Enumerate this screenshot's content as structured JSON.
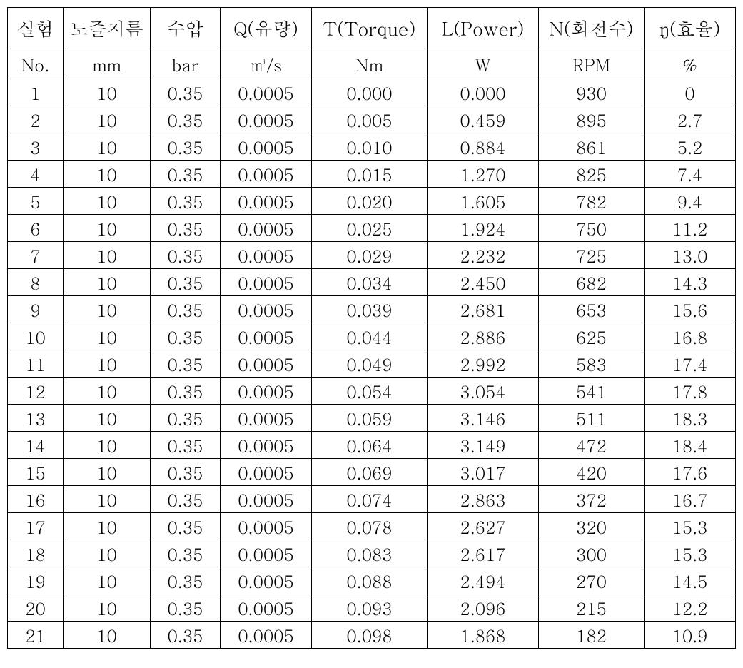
{
  "table": {
    "columns": [
      {
        "header": "실험",
        "unit": "No.",
        "width_class": "col-no"
      },
      {
        "header": "노즐지름",
        "unit": "mm",
        "width_class": "col-nozzle"
      },
      {
        "header": "수압",
        "unit": "bar",
        "width_class": "col-pressure"
      },
      {
        "header": "Q(유량)",
        "unit": "㎥/s",
        "width_class": "col-flow"
      },
      {
        "header": "T(Torque)",
        "unit": "Nm",
        "width_class": "col-torque"
      },
      {
        "header": "L(Power)",
        "unit": "W",
        "width_class": "col-power"
      },
      {
        "header": "N(회전수)",
        "unit": "RPM",
        "width_class": "col-rpm"
      },
      {
        "header": "ŋ(효율)",
        "unit": "%",
        "width_class": "col-eff"
      }
    ],
    "rows": [
      [
        "1",
        "10",
        "0.35",
        "0.0005",
        "0.000",
        "0.000",
        "930",
        "0"
      ],
      [
        "2",
        "10",
        "0.35",
        "0.0005",
        "0.005",
        "0.459",
        "895",
        "2.7"
      ],
      [
        "3",
        "10",
        "0.35",
        "0.0005",
        "0.010",
        "0.884",
        "861",
        "5.2"
      ],
      [
        "4",
        "10",
        "0.35",
        "0.0005",
        "0.015",
        "1.270",
        "825",
        "7.4"
      ],
      [
        "5",
        "10",
        "0.35",
        "0.0005",
        "0.020",
        "1.605",
        "782",
        "9.4"
      ],
      [
        "6",
        "10",
        "0.35",
        "0.0005",
        "0.025",
        "1.924",
        "750",
        "11.2"
      ],
      [
        "7",
        "10",
        "0.35",
        "0.0005",
        "0.029",
        "2.232",
        "725",
        "13.0"
      ],
      [
        "8",
        "10",
        "0.35",
        "0.0005",
        "0.034",
        "2.450",
        "682",
        "14.3"
      ],
      [
        "9",
        "10",
        "0.35",
        "0.0005",
        "0.039",
        "2.681",
        "653",
        "15.6"
      ],
      [
        "10",
        "10",
        "0.35",
        "0.0005",
        "0.044",
        "2.886",
        "625",
        "16.8"
      ],
      [
        "11",
        "10",
        "0.35",
        "0.0005",
        "0.049",
        "2.992",
        "583",
        "17.4"
      ],
      [
        "12",
        "10",
        "0.35",
        "0.0005",
        "0.054",
        "3.054",
        "541",
        "17.8"
      ],
      [
        "13",
        "10",
        "0.35",
        "0.0005",
        "0.059",
        "3.146",
        "511",
        "18.3"
      ],
      [
        "14",
        "10",
        "0.35",
        "0.0005",
        "0.064",
        "3.149",
        "472",
        "18.4"
      ],
      [
        "15",
        "10",
        "0.35",
        "0.0005",
        "0.069",
        "3.017",
        "420",
        "17.6"
      ],
      [
        "16",
        "10",
        "0.35",
        "0.0005",
        "0.074",
        "2.863",
        "372",
        "16.7"
      ],
      [
        "17",
        "10",
        "0.35",
        "0.0005",
        "0.078",
        "2.627",
        "320",
        "15.3"
      ],
      [
        "18",
        "10",
        "0.35",
        "0.0005",
        "0.083",
        "2.617",
        "300",
        "15.3"
      ],
      [
        "19",
        "10",
        "0.35",
        "0.0005",
        "0.088",
        "2.494",
        "270",
        "14.5"
      ],
      [
        "20",
        "10",
        "0.35",
        "0.0005",
        "0.093",
        "2.096",
        "215",
        "12.2"
      ],
      [
        "21",
        "10",
        "0.35",
        "0.0005",
        "0.098",
        "1.868",
        "182",
        "10.9"
      ]
    ],
    "border_color": "#000000",
    "background_color": "#ffffff",
    "text_color": "#000000",
    "header_fontsize": 26,
    "unit_fontsize": 24,
    "cell_fontsize": 24
  }
}
